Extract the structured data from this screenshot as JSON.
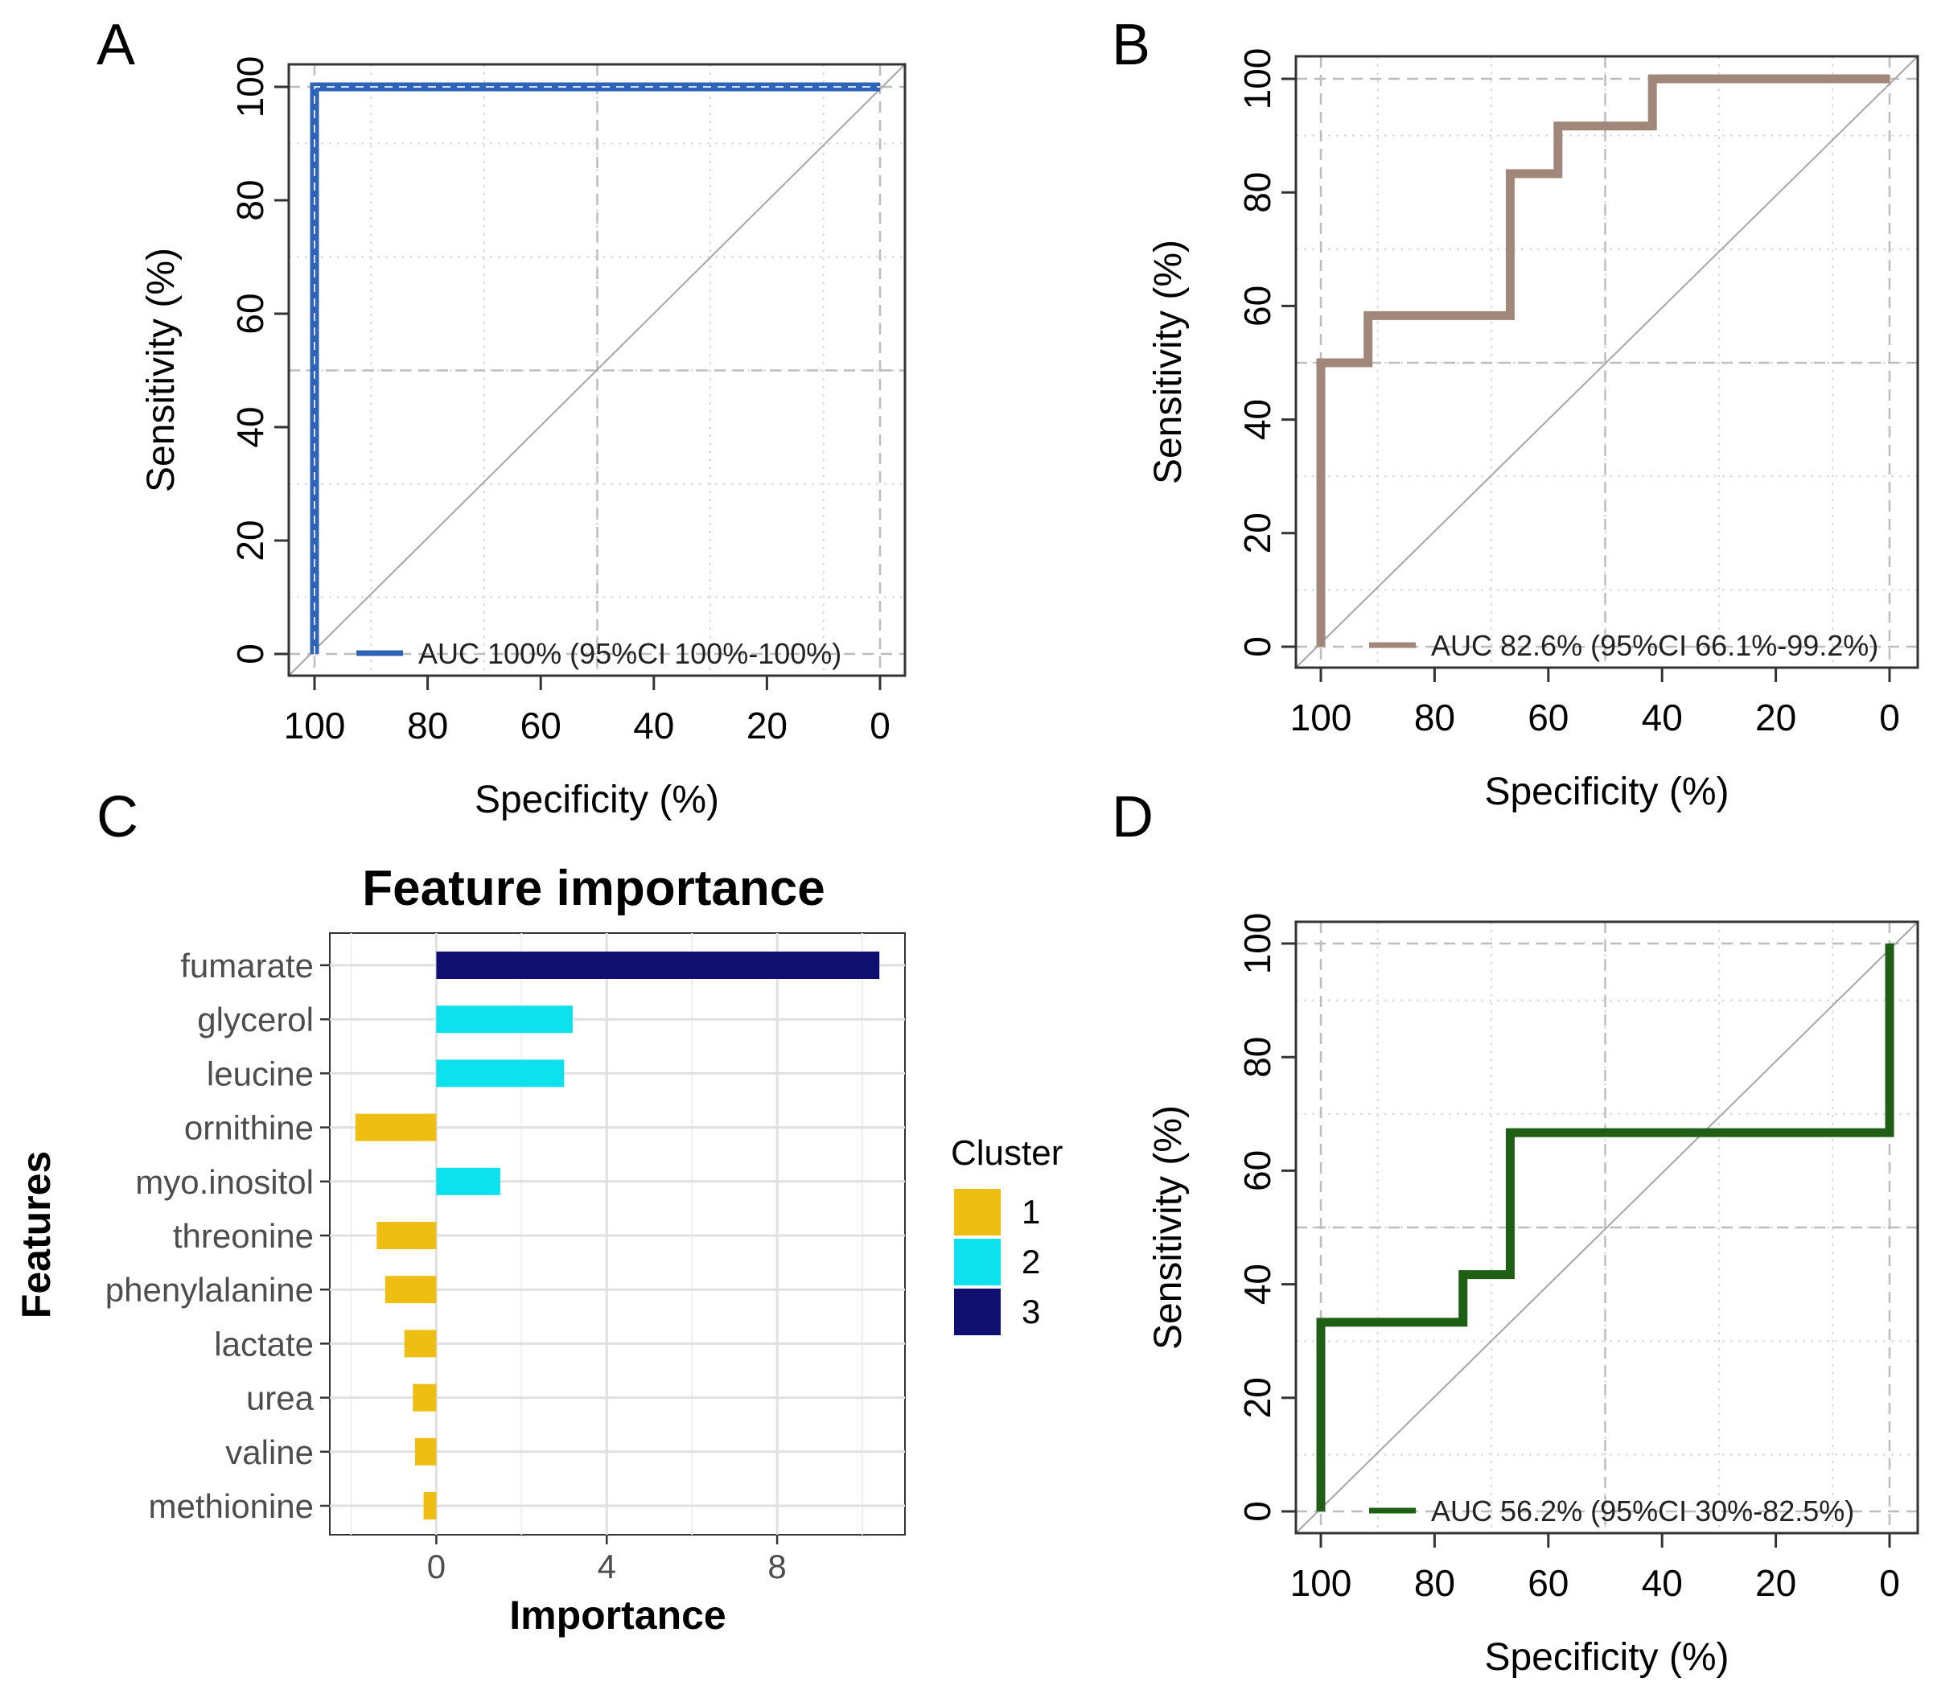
{
  "panels": {
    "A": "A",
    "B": "B",
    "C": "C",
    "D": "D"
  },
  "colors": {
    "roc_A": "#2e63b8",
    "roc_B": "#a0877a",
    "roc_D": "#1f5e15",
    "cluster_1": "#efbe12",
    "cluster_2": "#0de1ee",
    "cluster_3": "#0f0f6f"
  },
  "chart_data": [
    {
      "panel": "A",
      "type": "line",
      "xlabel": "Specificity (%)",
      "ylabel": "Sensitivity (%)",
      "xlim": [
        100,
        0
      ],
      "ylim": [
        0,
        100
      ],
      "x_ticks": [
        100,
        80,
        60,
        40,
        20,
        0
      ],
      "y_ticks": [
        0,
        20,
        40,
        60,
        80,
        100
      ],
      "grid": true,
      "legend_position": "bottom-right",
      "series": [
        {
          "name": "AUC 100% (95%CI 100%-100%)",
          "x": [
            100,
            100,
            0
          ],
          "y": [
            0,
            100,
            100
          ]
        }
      ]
    },
    {
      "panel": "B",
      "type": "line",
      "xlabel": "Specificity (%)",
      "ylabel": "Sensitivity (%)",
      "xlim": [
        100,
        0
      ],
      "ylim": [
        0,
        100
      ],
      "x_ticks": [
        100,
        80,
        60,
        40,
        20,
        0
      ],
      "y_ticks": [
        0,
        20,
        40,
        60,
        80,
        100
      ],
      "grid": true,
      "legend_position": "bottom-right",
      "series": [
        {
          "name": "AUC 82.6% (95%CI 66.1%-99.2%)",
          "x": [
            100,
            100,
            91.7,
            91.7,
            66.7,
            66.7,
            58.3,
            58.3,
            41.7,
            41.7,
            0
          ],
          "y": [
            0,
            50,
            50,
            58.3,
            58.3,
            83.3,
            83.3,
            91.7,
            91.7,
            100,
            100
          ]
        }
      ]
    },
    {
      "panel": "C",
      "type": "bar",
      "orientation": "horizontal",
      "title": "Feature importance",
      "xlabel": "Importance",
      "ylabel": "Features",
      "xlim": [
        -2.5,
        11
      ],
      "x_ticks": [
        0,
        4,
        8
      ],
      "grid": true,
      "legend_title": "Cluster",
      "legend_position": "right",
      "legend_entries": [
        "1",
        "2",
        "3"
      ],
      "categories": [
        "fumarate",
        "glycerol",
        "leucine",
        "ornithine",
        "myo.inositol",
        "threonine",
        "phenylalanine",
        "lactate",
        "urea",
        "valine",
        "methionine"
      ],
      "values": [
        10.4,
        3.2,
        3.0,
        -1.9,
        1.5,
        -1.4,
        -1.2,
        -0.75,
        -0.55,
        -0.5,
        -0.3
      ],
      "cluster": [
        3,
        2,
        2,
        1,
        2,
        1,
        1,
        1,
        1,
        1,
        1
      ]
    },
    {
      "panel": "D",
      "type": "line",
      "xlabel": "Specificity (%)",
      "ylabel": "Sensitivity (%)",
      "xlim": [
        100,
        0
      ],
      "ylim": [
        0,
        100
      ],
      "x_ticks": [
        100,
        80,
        60,
        40,
        20,
        0
      ],
      "y_ticks": [
        0,
        20,
        40,
        60,
        80,
        100
      ],
      "grid": true,
      "legend_position": "bottom-right",
      "series": [
        {
          "name": "AUC 56.2% (95%CI 30%-82.5%)",
          "x": [
            100,
            100,
            75,
            75,
            66.7,
            66.7,
            0,
            0
          ],
          "y": [
            0,
            33.3,
            33.3,
            41.7,
            41.7,
            66.7,
            66.7,
            100
          ]
        }
      ]
    }
  ]
}
